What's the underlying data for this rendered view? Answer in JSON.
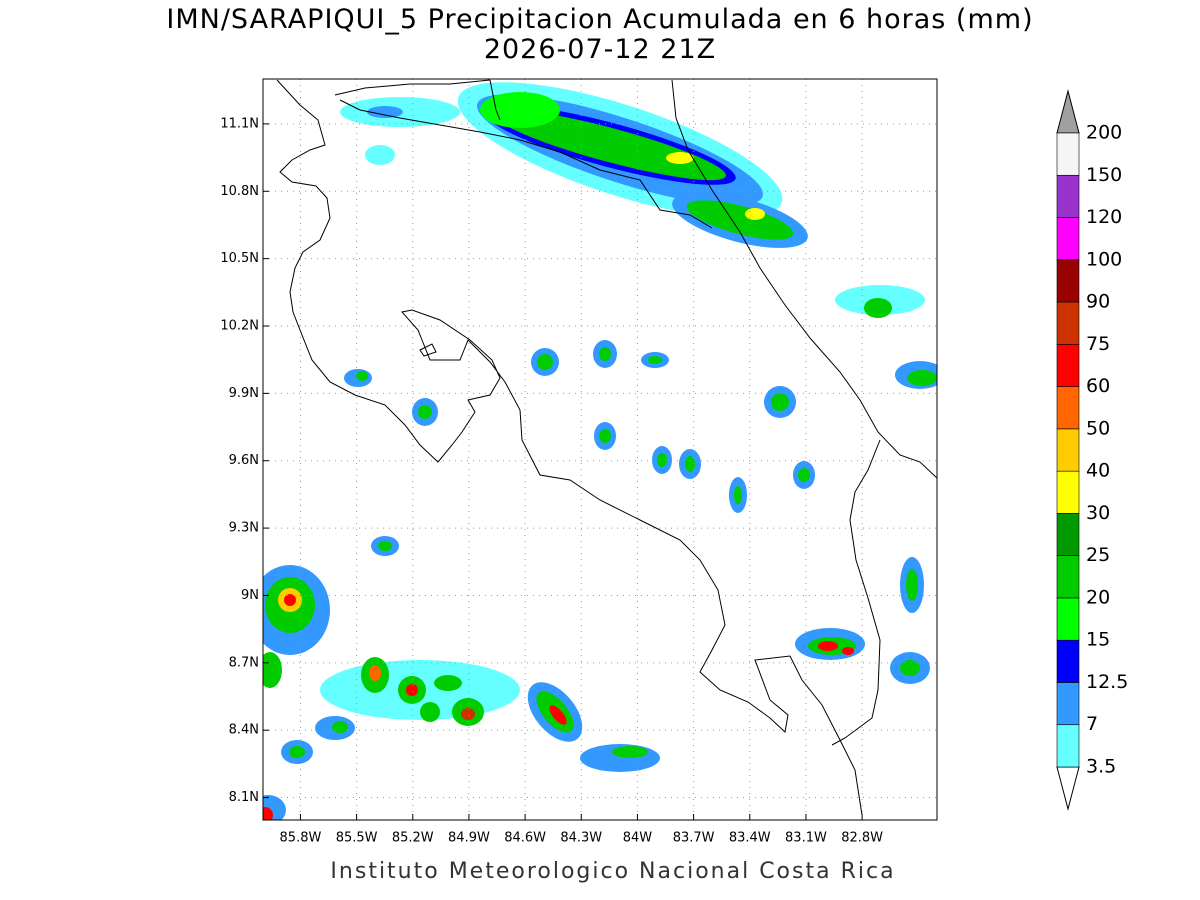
{
  "map": {
    "title": "IMN/SARAPIQUI_5 Precipitacion Acumulada en 6 horas (mm)",
    "subtitle": "2026-07-12 21Z",
    "footer": "Instituto Meteorologico Nacional Costa Rica",
    "lonlim": [
      -86.0,
      -82.4
    ],
    "latlim": [
      8.0,
      11.3
    ],
    "lonticks": [
      {
        "value": -85.8,
        "label": "85.8W"
      },
      {
        "value": -85.5,
        "label": "85.5W"
      },
      {
        "value": -85.2,
        "label": "85.2W"
      },
      {
        "value": -84.9,
        "label": "84.9W"
      },
      {
        "value": -84.6,
        "label": "84.6W"
      },
      {
        "value": -84.3,
        "label": "84.3W"
      },
      {
        "value": -84.0,
        "label": "84W"
      },
      {
        "value": -83.7,
        "label": "83.7W"
      },
      {
        "value": -83.4,
        "label": "83.4W"
      },
      {
        "value": -83.1,
        "label": "83.1W"
      },
      {
        "value": -82.8,
        "label": "82.8W"
      }
    ],
    "latticks": [
      {
        "value": 8.1,
        "label": "8.1N"
      },
      {
        "value": 8.4,
        "label": "8.4N"
      },
      {
        "value": 8.7,
        "label": "8.7N"
      },
      {
        "value": 9.0,
        "label": "9N"
      },
      {
        "value": 9.3,
        "label": "9.3N"
      },
      {
        "value": 9.6,
        "label": "9.6N"
      },
      {
        "value": 9.9,
        "label": "9.9N"
      },
      {
        "value": 10.2,
        "label": "10.2N"
      },
      {
        "value": 10.5,
        "label": "10.5N"
      },
      {
        "value": 10.8,
        "label": "10.8N"
      },
      {
        "value": 11.1,
        "label": "11.1N"
      }
    ],
    "colorbar": {
      "levels": [
        3.5,
        7,
        12.5,
        15,
        20,
        25,
        30,
        40,
        50,
        60,
        75,
        90,
        100,
        120,
        150,
        200
      ],
      "colors": [
        "#66ffff",
        "#3399ff",
        "#0000ff",
        "#00ff00",
        "#00cc00",
        "#009900",
        "#ffff00",
        "#ffcc00",
        "#ff6600",
        "#ff0000",
        "#cc3300",
        "#990000",
        "#ff00ff",
        "#9933cc",
        "#f5f5f5"
      ],
      "under_color": "#ffffff",
      "over_color": "#a0a0a0"
    }
  }
}
